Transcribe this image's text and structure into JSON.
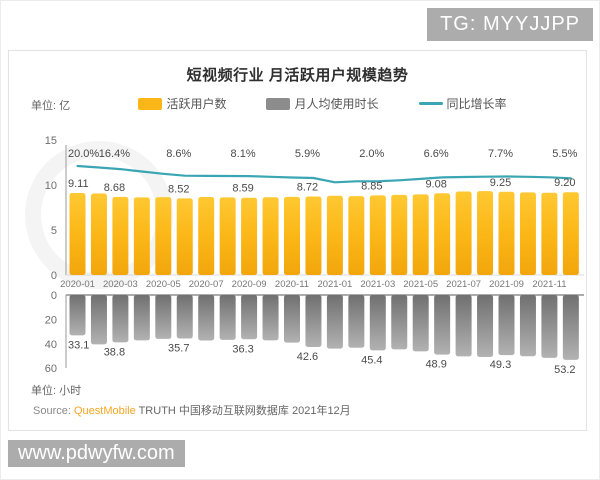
{
  "page": {
    "badge_text": "TG: MYYJJPP",
    "watermark_text": "www.pdwyfw.com"
  },
  "header": {
    "title": "短视频行业 月活跃用户规模趋势",
    "unit_top": "单位: 亿",
    "unit_bottom": "单位: 小时",
    "legend": [
      {
        "label": "活跃用户数"
      },
      {
        "label": "月人均使用时长"
      },
      {
        "label": "同比增长率"
      }
    ]
  },
  "source": {
    "prefix": "Source: ",
    "brand": "QuestMobile",
    "rest": " TRUTH 中国移动互联网数据库 2021年12月"
  },
  "colors": {
    "bar_orange_top": "#FFC832",
    "bar_orange_mid": "#FBB717",
    "bar_orange_bottom": "#F2A60C",
    "bar_gray_top": "#707070",
    "bar_gray_bottom": "#B2B2B2",
    "legend_gray": "#8C8C8C",
    "growth_line": "#3AA6B4",
    "brand_orange": "#F5A623",
    "badge_bg": "#ACACAC",
    "label_text": "#4A4A4A",
    "tick_text": "#6E6E6E"
  },
  "chart_data": {
    "type": "bar",
    "title": "短视频行业 月活跃用户规模趋势",
    "x": [
      "2020-01",
      "2020-02",
      "2020-03",
      "2020-04",
      "2020-05",
      "2020-06",
      "2020-07",
      "2020-08",
      "2020-09",
      "2020-10",
      "2020-11",
      "2020-12",
      "2021-01",
      "2021-02",
      "2021-03",
      "2021-04",
      "2021-05",
      "2021-06",
      "2021-07",
      "2021-08",
      "2021-09",
      "2021-10",
      "2021-11",
      "2021-12"
    ],
    "x_axis_tick_labels": [
      "2020-01",
      "2020-03",
      "2020-05",
      "2020-07",
      "2020-09",
      "2020-11",
      "2021-01",
      "2021-03",
      "2021-05",
      "2021-07",
      "2021-09",
      "2021-11"
    ],
    "series": [
      {
        "name": "活跃用户数",
        "type": "bar",
        "axis": "top",
        "unit": "亿",
        "ylim": [
          0,
          15
        ],
        "yticks": [
          0,
          5,
          10,
          15
        ],
        "values": [
          9.11,
          9.05,
          8.68,
          8.62,
          8.65,
          8.52,
          8.66,
          8.62,
          8.59,
          8.64,
          8.68,
          8.72,
          8.8,
          8.76,
          8.85,
          8.9,
          8.96,
          9.08,
          9.28,
          9.32,
          9.25,
          9.18,
          9.14,
          9.2
        ]
      },
      {
        "name": "同比增长率",
        "type": "line",
        "axis": "top-secondary",
        "unit": "%",
        "values": [
          20.0,
          18.2,
          16.4,
          13.5,
          10.8,
          8.6,
          8.4,
          8.2,
          8.1,
          7.3,
          6.5,
          5.9,
          0.8,
          2.0,
          2.0,
          3.2,
          4.8,
          6.6,
          7.0,
          7.4,
          7.7,
          7.3,
          6.7,
          5.5
        ],
        "note": "unlabeled monthly values estimated from line shape"
      },
      {
        "name": "月人均使用时长",
        "type": "bar",
        "axis": "bottom-inverted",
        "unit": "小时",
        "ylim": [
          0,
          60
        ],
        "yticks": [
          0,
          20,
          40,
          60
        ],
        "values": [
          33.1,
          40.5,
          38.8,
          37.2,
          36.0,
          35.7,
          37.3,
          36.8,
          36.3,
          37.2,
          39.0,
          42.6,
          44.0,
          43.2,
          45.4,
          44.6,
          46.2,
          48.9,
          50.3,
          50.8,
          49.3,
          50.2,
          51.5,
          53.2
        ]
      }
    ],
    "labeled_point_indices": [
      0,
      2,
      5,
      8,
      11,
      14,
      17,
      20,
      23
    ],
    "labels": {
      "active_users": [
        "9.11",
        "8.68",
        "8.52",
        "8.59",
        "8.72",
        "8.85",
        "9.08",
        "9.25",
        "9.20"
      ],
      "growth_rate": [
        "20.0%",
        "16.4%",
        "8.6%",
        "8.1%",
        "5.9%",
        "2.0%",
        "6.6%",
        "7.7%",
        "5.5%"
      ],
      "usage_hours": [
        "33.1",
        "38.8",
        "35.7",
        "36.3",
        "42.6",
        "45.4",
        "48.9",
        "49.3",
        "53.2"
      ]
    },
    "legend_position": "top-center",
    "grid": false
  }
}
